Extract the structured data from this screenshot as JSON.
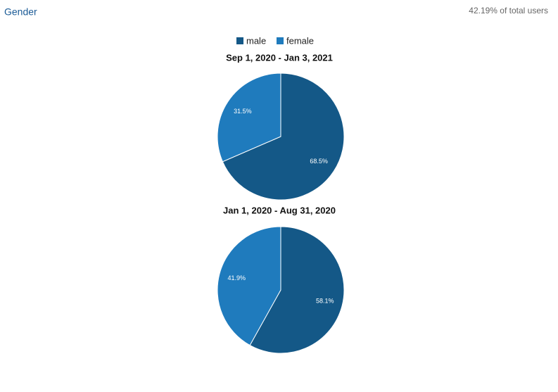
{
  "header": {
    "title": "Gender",
    "subtitle": "42.19% of total users"
  },
  "chart_data": [
    {
      "type": "pie",
      "title": "Sep 1, 2020 - Jan 3, 2021",
      "categories": [
        "male",
        "female"
      ],
      "values": [
        68.5,
        31.5
      ],
      "value_labels": [
        "68.5%",
        "31.5%"
      ],
      "colors": [
        "#145887",
        "#1f7bbd"
      ]
    },
    {
      "type": "pie",
      "title": "Jan 1, 2020 - Aug 31, 2020",
      "categories": [
        "male",
        "female"
      ],
      "values": [
        58.1,
        41.9
      ],
      "value_labels": [
        "58.1%",
        "41.9%"
      ],
      "colors": [
        "#145887",
        "#1f7bbd"
      ]
    }
  ]
}
